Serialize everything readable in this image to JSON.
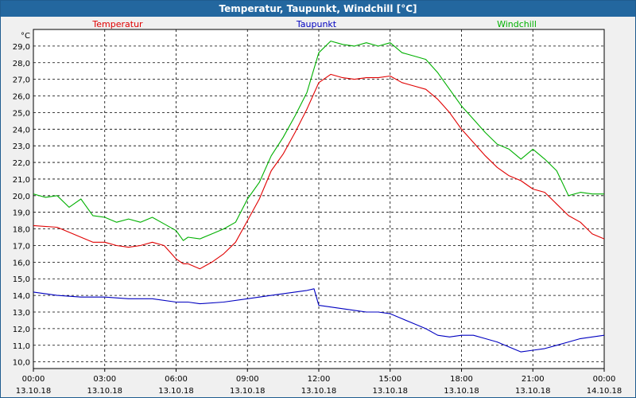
{
  "window": {
    "title": "Temperatur, Taupunkt, Windchill [°C]"
  },
  "colors": {
    "temperatur": "#e00000",
    "taupunkt": "#0000c0",
    "windchill": "#00b000",
    "titlebar": "#23679f"
  },
  "chart_data": {
    "type": "line",
    "title": "Temperatur, Taupunkt, Windchill [°C]",
    "y_unit": "°C",
    "ylim": [
      9.6,
      30.0
    ],
    "y_ticks": [
      "10,0",
      "11,0",
      "12,0",
      "13,0",
      "14,0",
      "15,0",
      "16,0",
      "17,0",
      "18,0",
      "19,0",
      "20,0",
      "21,0",
      "22,0",
      "23,0",
      "24,0",
      "25,0",
      "26,0",
      "27,0",
      "28,0",
      "29,0"
    ],
    "x_ticks": [
      {
        "time": "00:00",
        "date": "13.10.18"
      },
      {
        "time": "03:00",
        "date": "13.10.18"
      },
      {
        "time": "06:00",
        "date": "13.10.18"
      },
      {
        "time": "09:00",
        "date": "13.10.18"
      },
      {
        "time": "12:00",
        "date": "13.10.18"
      },
      {
        "time": "15:00",
        "date": "13.10.18"
      },
      {
        "time": "18:00",
        "date": "13.10.18"
      },
      {
        "time": "21:00",
        "date": "13.10.18"
      },
      {
        "time": "00:00",
        "date": "14.10.18"
      }
    ],
    "xlim_hours": [
      0,
      24
    ],
    "grid": true,
    "legend_placement": "top",
    "series": [
      {
        "name": "Temperatur",
        "x": [
          0,
          1,
          1.5,
          2,
          2.5,
          3,
          3.5,
          4,
          4.5,
          5,
          5.5,
          6,
          6.3,
          6.5,
          7,
          7.5,
          8,
          8.5,
          9,
          9.5,
          10,
          10.5,
          11,
          11.5,
          12,
          12.5,
          13,
          13.5,
          14,
          14.5,
          15,
          15.5,
          16,
          16.5,
          17,
          17.5,
          18,
          18.5,
          19,
          19.5,
          20,
          20.5,
          21,
          21.5,
          22,
          22.5,
          23,
          23.5,
          24
        ],
        "values": [
          18.2,
          18.1,
          17.8,
          17.5,
          17.2,
          17.2,
          17.0,
          16.9,
          17.0,
          17.2,
          17.0,
          16.2,
          15.9,
          15.9,
          15.6,
          16.0,
          16.5,
          17.2,
          18.5,
          19.8,
          21.5,
          22.5,
          23.8,
          25.2,
          26.8,
          27.3,
          27.1,
          27.0,
          27.1,
          27.1,
          27.2,
          26.8,
          26.6,
          26.4,
          25.8,
          25.0,
          24.0,
          23.2,
          22.4,
          21.7,
          21.2,
          20.9,
          20.4,
          20.2,
          19.5,
          18.8,
          18.4,
          17.7,
          17.4
        ]
      },
      {
        "name": "Taupunkt",
        "x": [
          0,
          1,
          2,
          3,
          4,
          5,
          6,
          6.5,
          7,
          8,
          9,
          10,
          11,
          11.5,
          11.8,
          12,
          12.5,
          13,
          13.5,
          14,
          14.5,
          15,
          15.5,
          16,
          16.5,
          17,
          17.5,
          18,
          18.5,
          19,
          19.5,
          20,
          20.5,
          21,
          21.5,
          22,
          22.5,
          23,
          23.5,
          24
        ],
        "values": [
          14.2,
          14.0,
          13.9,
          13.9,
          13.8,
          13.8,
          13.6,
          13.6,
          13.5,
          13.6,
          13.8,
          14.0,
          14.2,
          14.3,
          14.4,
          13.4,
          13.3,
          13.2,
          13.1,
          13.0,
          13.0,
          12.9,
          12.6,
          12.3,
          12.0,
          11.6,
          11.5,
          11.6,
          11.6,
          11.4,
          11.2,
          10.9,
          10.6,
          10.7,
          10.8,
          11.0,
          11.2,
          11.4,
          11.5,
          11.6
        ]
      },
      {
        "name": "Windchill",
        "x": [
          0,
          0.5,
          1,
          1.5,
          2,
          2.5,
          3,
          3.5,
          4,
          4.5,
          5,
          5.5,
          6,
          6.3,
          6.5,
          7,
          7.5,
          8,
          8.5,
          9,
          9.5,
          10,
          10.5,
          11,
          11.5,
          12,
          12.5,
          13,
          13.5,
          14,
          14.5,
          15,
          15.5,
          16,
          16.5,
          17,
          17.5,
          18,
          18.5,
          19,
          19.5,
          20,
          20.5,
          21,
          21.5,
          22,
          22.5,
          23,
          23.5,
          24
        ],
        "values": [
          20.1,
          19.9,
          20.0,
          19.3,
          19.8,
          18.8,
          18.7,
          18.4,
          18.6,
          18.4,
          18.7,
          18.3,
          17.9,
          17.3,
          17.5,
          17.4,
          17.7,
          18.0,
          18.4,
          19.8,
          20.8,
          22.4,
          23.5,
          24.8,
          26.2,
          28.6,
          29.3,
          29.1,
          29.0,
          29.2,
          29.0,
          29.2,
          28.6,
          28.4,
          28.2,
          27.4,
          26.4,
          25.4,
          24.6,
          23.8,
          23.1,
          22.8,
          22.2,
          22.8,
          22.2,
          21.5,
          20.0,
          20.2,
          20.1,
          20.1
        ]
      }
    ]
  }
}
